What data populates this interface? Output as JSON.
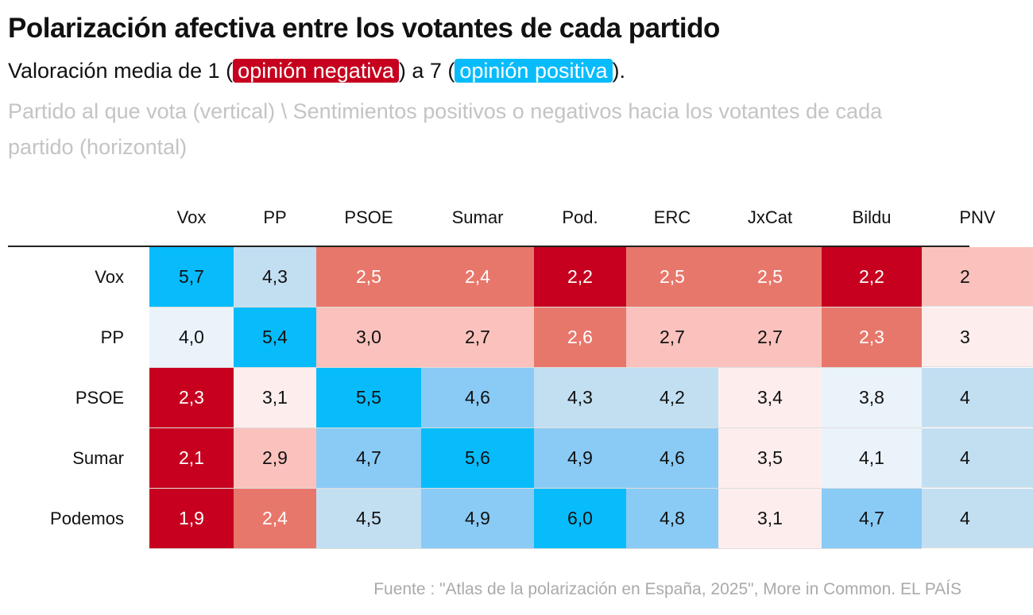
{
  "title": "Polarización afectiva entre los votantes de cada partido",
  "subtitle": {
    "pre": "Valoración media de 1 (",
    "neg": "opinión negativa",
    "mid": ") a 7 (",
    "pos": "opinión positiva",
    "post": ")."
  },
  "description": "Partido al que vota (vertical) \\ Sentimientos positivos o negativos hacia los votantes de cada partido (horizontal)",
  "source": "Fuente : \"Atlas de la polarización en España, 2025\", More in Common. EL PAÍS",
  "colors": {
    "darkred": "#c6001e",
    "medred": "#e8776b",
    "pink": "#fbc2bd",
    "vlpink": "#fdeeed",
    "vlblue": "#eaf3fa",
    "lightblue": "#c2dff2",
    "midblue": "#8acbf6",
    "cyan": "#08bcfc"
  },
  "chart_data": {
    "type": "heatmap",
    "columns": [
      "Vox",
      "PP",
      "PSOE",
      "Sumar",
      "Pod.",
      "ERC",
      "JxCat",
      "Bildu",
      "PNV"
    ],
    "rows": [
      {
        "label": "Vox",
        "values": [
          "5,7",
          "4,3",
          "2,5",
          "2,4",
          "2,2",
          "2,5",
          "2,5",
          "2,2",
          "2"
        ],
        "colors": [
          "cyan",
          "lightblue",
          "medred",
          "medred",
          "darkred",
          "medred",
          "medred",
          "darkred",
          "pink"
        ]
      },
      {
        "label": "PP",
        "values": [
          "4,0",
          "5,4",
          "3,0",
          "2,7",
          "2,6",
          "2,7",
          "2,7",
          "2,3",
          "3"
        ],
        "colors": [
          "vlblue",
          "cyan",
          "pink",
          "pink",
          "medred",
          "pink",
          "pink",
          "medred",
          "vlpink"
        ]
      },
      {
        "label": "PSOE",
        "values": [
          "2,3",
          "3,1",
          "5,5",
          "4,6",
          "4,3",
          "4,2",
          "3,4",
          "3,8",
          "4"
        ],
        "colors": [
          "darkred",
          "vlpink",
          "cyan",
          "midblue",
          "lightblue",
          "lightblue",
          "vlpink",
          "vlblue",
          "lightblue"
        ]
      },
      {
        "label": "Sumar",
        "values": [
          "2,1",
          "2,9",
          "4,7",
          "5,6",
          "4,9",
          "4,6",
          "3,5",
          "4,1",
          "4"
        ],
        "colors": [
          "darkred",
          "pink",
          "midblue",
          "cyan",
          "midblue",
          "midblue",
          "vlpink",
          "vlblue",
          "lightblue"
        ]
      },
      {
        "label": "Podemos",
        "values": [
          "1,9",
          "2,4",
          "4,5",
          "4,9",
          "6,0",
          "4,8",
          "3,1",
          "4,7",
          "4"
        ],
        "colors": [
          "darkred",
          "medred",
          "lightblue",
          "midblue",
          "cyan",
          "midblue",
          "vlpink",
          "midblue",
          "lightblue"
        ]
      }
    ]
  }
}
